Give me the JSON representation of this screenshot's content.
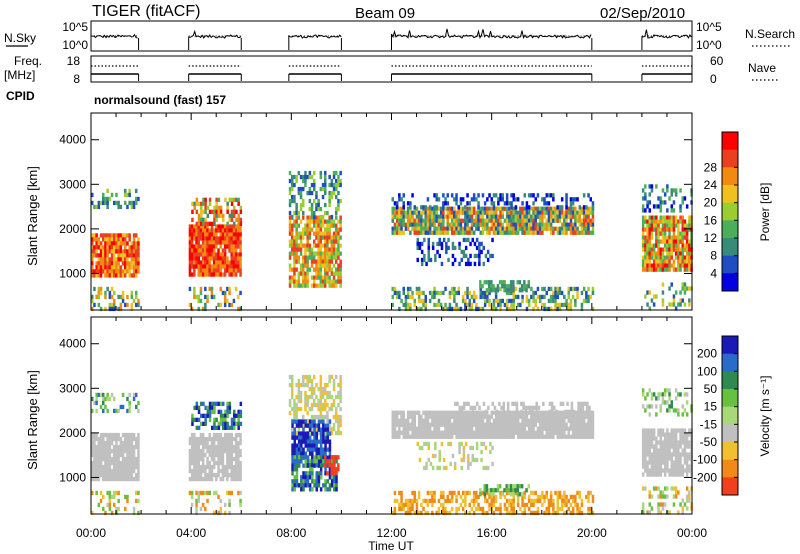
{
  "header": {
    "station": "TIGER (fitACF)",
    "beam": "Beam 09",
    "date": "02/Sep/2010"
  },
  "nsky_panel": {
    "left_label": "N.Sky",
    "right_label": "N.Search",
    "ticks_left": [
      "10^5",
      "10^0"
    ],
    "ticks_right": [
      "10^5",
      "10^0"
    ]
  },
  "freq_panel": {
    "left_label_1": "Freq.",
    "left_label_2": "[MHz]",
    "right_label": "Nave",
    "ticks_left": [
      "18",
      "8"
    ],
    "ticks_right": [
      "60",
      "0"
    ]
  },
  "cpid": {
    "label": "CPID",
    "text": "normalsound (fast) 157"
  },
  "time_axis": {
    "label": "Time UT",
    "ticks": [
      "00:00",
      "04:00",
      "08:00",
      "12:00",
      "16:00",
      "20:00",
      "00:00"
    ]
  },
  "chart_data": [
    {
      "type": "heatmap",
      "name": "power",
      "ylabel": "Slant Range [km]",
      "yticks": [
        "1000",
        "2000",
        "3000",
        "4000"
      ],
      "ylim": [
        180,
        4600
      ],
      "xlim_hours": [
        0,
        24
      ],
      "colorbar_label": "Power [dB]",
      "colorbar_ticks": [
        "4",
        "8",
        "12",
        "16",
        "20",
        "24",
        "28"
      ],
      "colors": [
        "#0000e0",
        "#1e4ec0",
        "#3a8a7a",
        "#4cae5a",
        "#9acd32",
        "#f0c020",
        "#f08a10",
        "#e84020",
        "#ff0000"
      ],
      "data_hours": [
        [
          0,
          1.9
        ],
        [
          3.9,
          6.0
        ],
        [
          7.9,
          10.0
        ],
        [
          12.0,
          20.0
        ],
        [
          22.0,
          24.0
        ]
      ]
    },
    {
      "type": "heatmap",
      "name": "velocity",
      "ylabel": "Slant Range [km]",
      "yticks": [
        "1000",
        "2000",
        "3000",
        "4000"
      ],
      "ylim": [
        180,
        4600
      ],
      "xlim_hours": [
        0,
        24
      ],
      "colorbar_label": "Velocity [m s⁻¹]",
      "colorbar_ticks": [
        "200",
        "100",
        "50",
        "15",
        "-15",
        "-50",
        "-100",
        "-200"
      ],
      "colors": [
        "#1a1ab4",
        "#2a6ac8",
        "#2f8a50",
        "#68c040",
        "#a8d878",
        "#c0c0c0",
        "#f0c030",
        "#f08a18",
        "#f04020"
      ],
      "data_hours": [
        [
          0,
          1.9
        ],
        [
          3.9,
          6.0
        ],
        [
          7.9,
          10.0
        ],
        [
          12.0,
          20.0
        ],
        [
          22.0,
          24.0
        ]
      ]
    }
  ]
}
